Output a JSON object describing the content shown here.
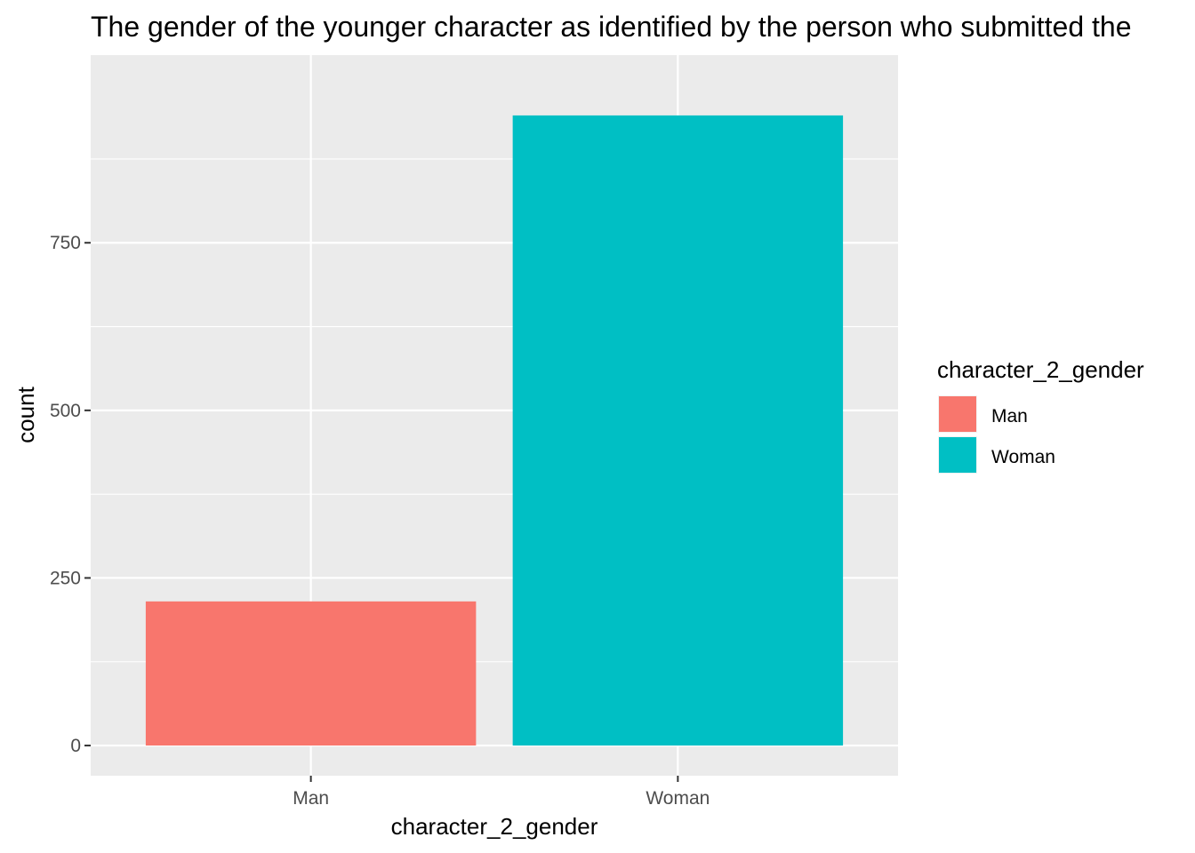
{
  "chart_data": {
    "type": "bar",
    "title": "The gender of the younger character as identified by the person who submitted the",
    "xlabel": "character_2_gender",
    "ylabel": "count",
    "categories": [
      "Man",
      "Woman"
    ],
    "values": [
      215,
      940
    ],
    "colors": [
      "#F8766D",
      "#00BFC4"
    ],
    "ylim": [
      -45,
      1030
    ],
    "yticks": [
      0,
      250,
      500,
      750
    ],
    "ytick_labels": [
      "0",
      "250",
      "500",
      "750"
    ],
    "grid": true,
    "legend": {
      "title": "character_2_gender",
      "placement": "right",
      "entries": [
        "Man",
        "Woman"
      ]
    }
  }
}
